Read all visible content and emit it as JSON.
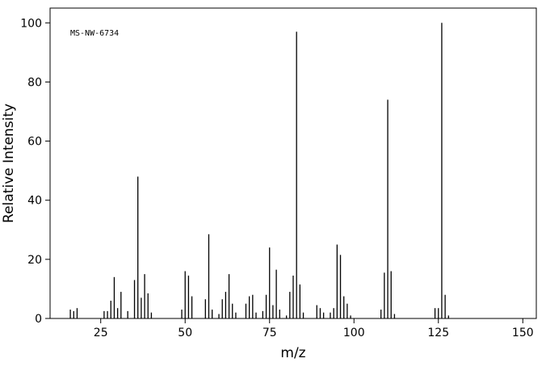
{
  "chart_data": {
    "type": "stem",
    "annotation": "MS-NW-6734",
    "xlabel": "m/z",
    "ylabel": "Relative Intensity",
    "x": [
      16,
      17,
      18,
      26,
      27,
      28,
      29,
      30,
      31,
      33,
      35,
      36,
      37,
      38,
      39,
      40,
      49,
      50,
      51,
      52,
      56,
      57,
      58,
      60,
      61,
      62,
      63,
      64,
      65,
      68,
      69,
      70,
      71,
      73,
      74,
      75,
      76,
      77,
      78,
      80,
      81,
      82,
      83,
      84,
      85,
      89,
      90,
      91,
      93,
      94,
      95,
      96,
      97,
      98,
      99,
      108,
      109,
      110,
      111,
      112,
      124,
      125,
      126,
      127,
      128
    ],
    "values": [
      3,
      2.5,
      3.5,
      2.5,
      2.5,
      6,
      14,
      3.5,
      9,
      2.5,
      13,
      48,
      7,
      15,
      8.5,
      2,
      3,
      16,
      14.5,
      7.5,
      6.5,
      28.5,
      3,
      1.5,
      6.5,
      9,
      15,
      5,
      2,
      5,
      7.5,
      8,
      2,
      2.5,
      8,
      24,
      4.5,
      16.5,
      3,
      1,
      9,
      14.5,
      97,
      11.5,
      2,
      4.5,
      3.5,
      2,
      2,
      3.5,
      25,
      21.5,
      7.5,
      5,
      1,
      3,
      15.5,
      74,
      16,
      1.5,
      3.5,
      3.5,
      100,
      8,
      1
    ],
    "color": "#000000",
    "xlim": [
      10,
      154
    ],
    "ylim": [
      0,
      105
    ],
    "xticks": [
      25,
      50,
      75,
      100,
      125,
      150
    ],
    "yticks": [
      0,
      20,
      40,
      60,
      80,
      100
    ]
  }
}
